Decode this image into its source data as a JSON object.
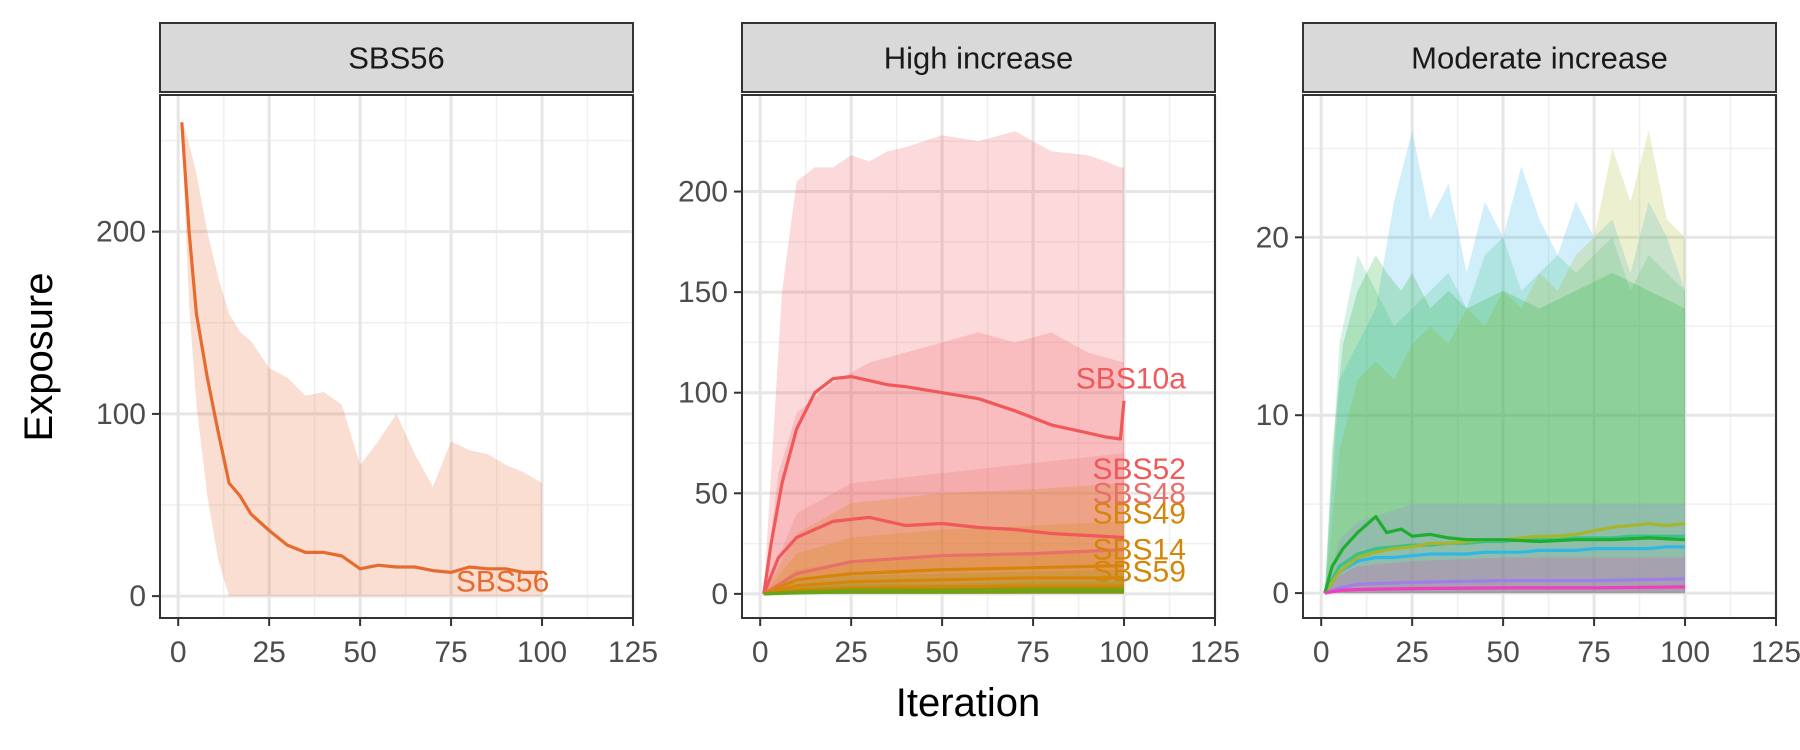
{
  "chart_data": {
    "type": "line",
    "xlabel": "Iteration",
    "ylabel": "Exposure",
    "legend": "none",
    "grid": true,
    "panels": [
      {
        "strip": "SBS56",
        "xlim": [
          -5,
          125
        ],
        "ylim": [
          -12,
          275
        ],
        "xticks": [
          0,
          25,
          50,
          75,
          100,
          125
        ],
        "yticks": [
          0,
          100,
          200
        ],
        "series": [
          {
            "name": "SBS56",
            "label": "SBS56",
            "color": "#E66B2F",
            "x": [
              1,
              3,
              5,
              8,
              11,
              14,
              17,
              20,
              25,
              30,
              35,
              40,
              45,
              50,
              55,
              60,
              65,
              70,
              75,
              80,
              85,
              90,
              95,
              100
            ],
            "y": [
              260,
              200,
              155,
              120,
              90,
              62,
              55,
              45,
              36,
              28,
              24,
              24,
              22,
              15,
              17,
              16,
              16,
              14,
              13,
              16,
              15,
              15,
              13,
              13
            ],
            "lower": [
              255,
              160,
              105,
              55,
              20,
              0,
              0,
              0,
              0,
              0,
              0,
              0,
              0,
              0,
              0,
              0,
              0,
              0,
              0,
              0,
              0,
              0,
              0,
              0
            ],
            "upper": [
              262,
              248,
              232,
              200,
              175,
              155,
              145,
              140,
              125,
              120,
              110,
              112,
              105,
              72,
              85,
              100,
              78,
              60,
              85,
              80,
              78,
              72,
              68,
              62
            ]
          }
        ]
      },
      {
        "strip": "High increase",
        "xlim": [
          -5,
          125
        ],
        "ylim": [
          -12,
          248
        ],
        "xticks": [
          0,
          25,
          50,
          75,
          100,
          125
        ],
        "yticks": [
          0,
          50,
          100,
          150,
          200
        ],
        "series": [
          {
            "name": "SBS10a",
            "label": "SBS10a",
            "color": "#F0585A",
            "x": [
              1,
              3,
              6,
              10,
              15,
              20,
              25,
              30,
              35,
              40,
              50,
              60,
              70,
              80,
              90,
              95,
              99,
              100
            ],
            "y": [
              0,
              25,
              55,
              82,
              100,
              107,
              108,
              106,
              104,
              103,
              100,
              97,
              91,
              84,
              80,
              78,
              77,
              96
            ],
            "lower": [
              0,
              0,
              0,
              0,
              0,
              0,
              0,
              0,
              0,
              0,
              0,
              0,
              0,
              0,
              0,
              0,
              0,
              0
            ],
            "upper": [
              0,
              60,
              150,
              205,
              212,
              212,
              218,
              215,
              220,
              222,
              228,
              225,
              230,
              220,
              218,
              215,
              212,
              212
            ]
          },
          {
            "name": "SBS52",
            "label": "SBS52",
            "color": "#F0585A",
            "x": [
              1,
              5,
              10,
              20,
              30,
              40,
              50,
              60,
              70,
              80,
              90,
              100
            ],
            "y": [
              0,
              18,
              28,
              36,
              38,
              34,
              35,
              33,
              32,
              30,
              29,
              28
            ],
            "lower": [
              0,
              0,
              0,
              0,
              0,
              0,
              0,
              0,
              0,
              0,
              0,
              0
            ],
            "upper": [
              0,
              60,
              90,
              105,
              115,
              120,
              125,
              130,
              125,
              130,
              120,
              115
            ]
          },
          {
            "name": "SBS48",
            "label": "SBS48",
            "color": "#E8706A",
            "x": [
              1,
              10,
              25,
              50,
              75,
              100
            ],
            "y": [
              0,
              10,
              16,
              19,
              20,
              22
            ],
            "lower": [
              0,
              0,
              0,
              0,
              0,
              0
            ],
            "upper": [
              0,
              40,
              55,
              60,
              65,
              70
            ]
          },
          {
            "name": "SBS49",
            "label": "SBS49",
            "color": "#D4860B",
            "x": [
              1,
              10,
              25,
              50,
              75,
              100
            ],
            "y": [
              0,
              7,
              10,
              12,
              13,
              14
            ],
            "lower": [
              0,
              0,
              0,
              0,
              0,
              0
            ],
            "upper": [
              0,
              30,
              45,
              50,
              52,
              55
            ]
          },
          {
            "name": "SBS14",
            "label": "SBS14",
            "color": "#D4860B",
            "x": [
              1,
              10,
              25,
              50,
              75,
              100
            ],
            "y": [
              0,
              4,
              6,
              7,
              8,
              8
            ],
            "lower": [
              0,
              0,
              0,
              0,
              0,
              0
            ],
            "upper": [
              0,
              20,
              28,
              32,
              34,
              36
            ]
          },
          {
            "name": "SBS59",
            "label": "SBS59",
            "color": "#D4860B",
            "x": [
              1,
              10,
              25,
              50,
              75,
              100
            ],
            "y": [
              0,
              2,
              3,
              3.5,
              4,
              4
            ],
            "lower": [
              0,
              0,
              0,
              0,
              0,
              0
            ],
            "upper": [
              0,
              12,
              16,
              18,
              20,
              22
            ]
          },
          {
            "name": "",
            "label": "",
            "color": "#8B9A0A",
            "x": [
              1,
              10,
              25,
              50,
              75,
              100
            ],
            "y": [
              0,
              1,
              2,
              2,
              2.5,
              2.5
            ],
            "lower": [
              0,
              0,
              0,
              0,
              0,
              0
            ],
            "upper": [
              0,
              6,
              9,
              10,
              11,
              12
            ]
          },
          {
            "name": "",
            "label": "",
            "color": "#6AA31A",
            "x": [
              1,
              10,
              25,
              50,
              75,
              100
            ],
            "y": [
              0,
              0.5,
              1,
              1,
              1.2,
              1.2
            ],
            "lower": [
              0,
              0,
              0,
              0,
              0,
              0
            ],
            "upper": [
              0,
              3,
              5,
              5,
              6,
              6
            ]
          }
        ]
      },
      {
        "strip": "Moderate increase",
        "xlim": [
          -5,
          125
        ],
        "ylim": [
          -1.4,
          28
        ],
        "xticks": [
          0,
          25,
          50,
          75,
          100,
          125
        ],
        "yticks": [
          0,
          10,
          20
        ],
        "series": [
          {
            "name": "",
            "label": "",
            "color": "#2FB8E6",
            "x": [
              1,
              5,
              10,
              15,
              20,
              25,
              30,
              35,
              40,
              45,
              50,
              55,
              60,
              65,
              70,
              75,
              80,
              85,
              90,
              95,
              100
            ],
            "y": [
              0,
              1.2,
              1.8,
              2,
              2,
              2.1,
              2.2,
              2.2,
              2.2,
              2.3,
              2.3,
              2.3,
              2.4,
              2.4,
              2.4,
              2.5,
              2.5,
              2.5,
              2.5,
              2.6,
              2.6
            ],
            "lower": [
              0,
              0,
              0,
              0,
              0,
              0,
              0,
              0,
              0,
              0,
              0,
              0,
              0,
              0,
              0,
              0,
              0,
              0,
              0,
              0,
              0
            ],
            "upper": [
              0,
              12,
              14,
              16,
              22,
              26,
              21,
              23,
              18,
              22,
              20,
              24,
              21,
              19,
              22,
              20,
              21,
              18,
              22,
              20,
              17
            ]
          },
          {
            "name": "",
            "label": "",
            "color": "#3CC08A",
            "x": [
              1,
              5,
              10,
              15,
              20,
              25,
              30,
              35,
              40,
              45,
              50,
              55,
              60,
              65,
              70,
              75,
              80,
              85,
              90,
              95,
              100
            ],
            "y": [
              0,
              1.5,
              2.2,
              2.5,
              2.6,
              2.7,
              2.7,
              2.8,
              2.8,
              2.9,
              2.9,
              3,
              3,
              3,
              3.1,
              3.1,
              3.1,
              3.2,
              3.2,
              3.2,
              3.2
            ],
            "lower": [
              0,
              0,
              0,
              0,
              0,
              0,
              0,
              0,
              0,
              0,
              0,
              0,
              0,
              0,
              0,
              0,
              0,
              0,
              0,
              0,
              0
            ],
            "upper": [
              0,
              14,
              19,
              17,
              15,
              16,
              17,
              18,
              16,
              19,
              20,
              17,
              18,
              19,
              18,
              19,
              20,
              17,
              19,
              18,
              17
            ]
          },
          {
            "name": "",
            "label": "",
            "color": "#A7B52B",
            "x": [
              1,
              5,
              10,
              15,
              20,
              25,
              30,
              35,
              40,
              45,
              50,
              55,
              60,
              65,
              70,
              75,
              80,
              85,
              90,
              95,
              100
            ],
            "y": [
              0,
              1.2,
              2,
              2.3,
              2.5,
              2.6,
              2.8,
              2.8,
              2.9,
              3,
              3,
              3.1,
              3.2,
              3.2,
              3.3,
              3.5,
              3.7,
              3.8,
              3.9,
              3.8,
              3.9
            ],
            "lower": [
              0,
              0,
              0,
              0,
              0,
              0,
              0,
              0,
              0,
              0,
              0,
              0,
              0,
              0,
              0,
              0,
              0,
              0,
              0,
              0,
              0
            ],
            "upper": [
              0,
              8,
              12,
              13,
              12,
              14,
              15,
              14,
              16,
              15,
              17,
              16,
              18,
              17,
              19,
              20,
              25,
              22,
              26,
              21,
              20
            ]
          },
          {
            "name": "",
            "label": "",
            "color": "#1DAE2F",
            "x": [
              1,
              3,
              6,
              10,
              15,
              18,
              22,
              25,
              30,
              35,
              40,
              50,
              60,
              70,
              80,
              90,
              100
            ],
            "y": [
              0,
              1.5,
              2.5,
              3.4,
              4.3,
              3.4,
              3.6,
              3.2,
              3.3,
              3.1,
              3,
              3,
              2.9,
              3,
              3,
              3.1,
              3
            ],
            "lower": [
              0,
              0,
              0,
              0,
              0,
              0,
              0,
              0,
              0,
              0,
              0,
              0,
              0,
              0,
              0,
              0,
              0
            ],
            "upper": [
              0,
              8,
              14,
              17,
              19,
              18,
              17,
              18,
              16,
              17,
              16,
              17,
              16,
              17,
              18,
              17,
              16
            ]
          },
          {
            "name": "",
            "label": "",
            "color": "#9F7FE8",
            "x": [
              1,
              5,
              10,
              25,
              50,
              75,
              100
            ],
            "y": [
              0,
              0.3,
              0.5,
              0.6,
              0.7,
              0.7,
              0.8
            ],
            "lower": [
              0,
              0,
              0,
              0,
              0,
              0,
              0
            ],
            "upper": [
              0,
              3,
              4,
              5,
              5,
              5,
              5
            ]
          },
          {
            "name": "",
            "label": "",
            "color": "#F23DBE",
            "x": [
              1,
              5,
              10,
              25,
              50,
              75,
              100
            ],
            "y": [
              0,
              0.15,
              0.2,
              0.25,
              0.3,
              0.3,
              0.35
            ],
            "lower": [
              0,
              0,
              0,
              0,
              0,
              0,
              0
            ],
            "upper": [
              0,
              1,
              1.5,
              1.8,
              2,
              2,
              2
            ]
          }
        ]
      }
    ]
  }
}
